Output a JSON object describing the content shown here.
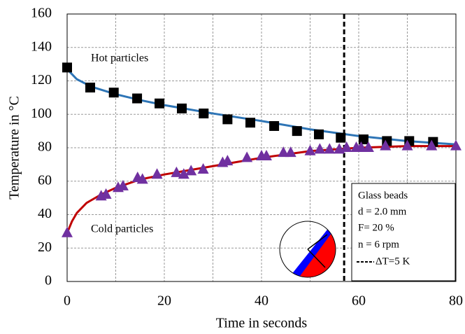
{
  "chart_data": {
    "type": "scatter",
    "x_label": "Time in seconds",
    "y_label": "Temperature in °C",
    "xlim": [
      0,
      80
    ],
    "ylim": [
      0,
      160
    ],
    "xticks": [
      0,
      20,
      40,
      60,
      80
    ],
    "yticks": [
      0,
      20,
      40,
      60,
      80,
      100,
      120,
      140,
      160
    ],
    "xgrid": [
      10,
      20,
      30,
      40,
      50,
      60,
      70
    ],
    "grid": true,
    "series": [
      {
        "name": "Hot particles",
        "color": "#000000",
        "marker": "square",
        "x": [
          0,
          4.75,
          9.6,
          14.4,
          19,
          23.6,
          28.1,
          33,
          37.7,
          42.6,
          47.3,
          51.8,
          56.3,
          61,
          65.8,
          70.4,
          75.3
        ],
        "values": [
          128,
          116,
          113,
          109.5,
          106.5,
          103.5,
          100.5,
          97,
          95,
          93,
          90,
          88,
          86,
          85,
          84,
          84,
          83.5
        ]
      },
      {
        "name": "Cold particles",
        "color": "#7030a0",
        "marker": "triangle",
        "x": [
          0,
          7,
          8,
          10.5,
          11.5,
          14.5,
          15.5,
          18.5,
          22.5,
          24,
          25.5,
          28,
          32,
          33,
          37,
          40,
          41,
          44.5,
          46,
          50,
          52,
          54,
          56,
          57.5,
          59.5,
          60.5,
          62,
          65.5,
          70,
          75,
          80
        ],
        "values": [
          29,
          51,
          52,
          56,
          57,
          62,
          61,
          64,
          65,
          64,
          66,
          67,
          71,
          72,
          74,
          75,
          75,
          77,
          77,
          78,
          79,
          79,
          79,
          80,
          80,
          80,
          80,
          81,
          81,
          81,
          81
        ]
      },
      {
        "color": "#2e75b6",
        "marker": "none",
        "x": [
          0,
          2,
          5,
          10,
          15,
          20,
          30,
          40,
          50,
          60,
          70,
          80
        ],
        "values": [
          127,
          121,
          116.5,
          112,
          108.5,
          105.5,
          100.5,
          96,
          91,
          87,
          84,
          82
        ]
      },
      {
        "color": "#c00000",
        "marker": "none",
        "x": [
          0,
          1,
          2,
          4,
          7,
          10,
          15,
          20,
          30,
          40,
          50,
          60,
          70,
          80
        ],
        "values": [
          29,
          36,
          41,
          47,
          52,
          56,
          61,
          64,
          69,
          74,
          78,
          80,
          81,
          81
        ]
      }
    ],
    "vline": {
      "x": 57,
      "label": "ΔT=5 K"
    },
    "info_box": [
      "Glass beads",
      "d = 2.0 mm",
      "F= 20 %",
      "n = 6 rpm"
    ]
  }
}
